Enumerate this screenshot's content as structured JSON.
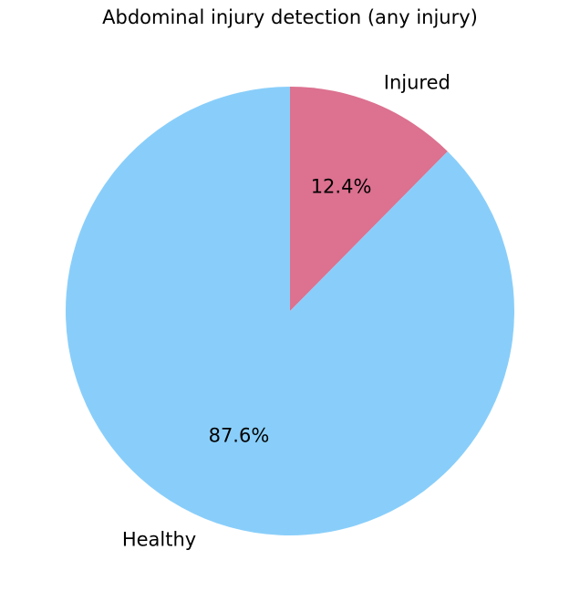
{
  "chart_data": {
    "type": "pie",
    "title": "Abdominal injury detection (any injury)",
    "labels": [
      "Injured",
      "Healthy"
    ],
    "values": [
      12.4,
      87.6
    ],
    "percent_labels": [
      "12.4%",
      "87.6%"
    ],
    "colors": [
      "#DC7190",
      "#89CEFA"
    ],
    "start_angle": 90,
    "direction": "clockwise",
    "legend": "none"
  }
}
